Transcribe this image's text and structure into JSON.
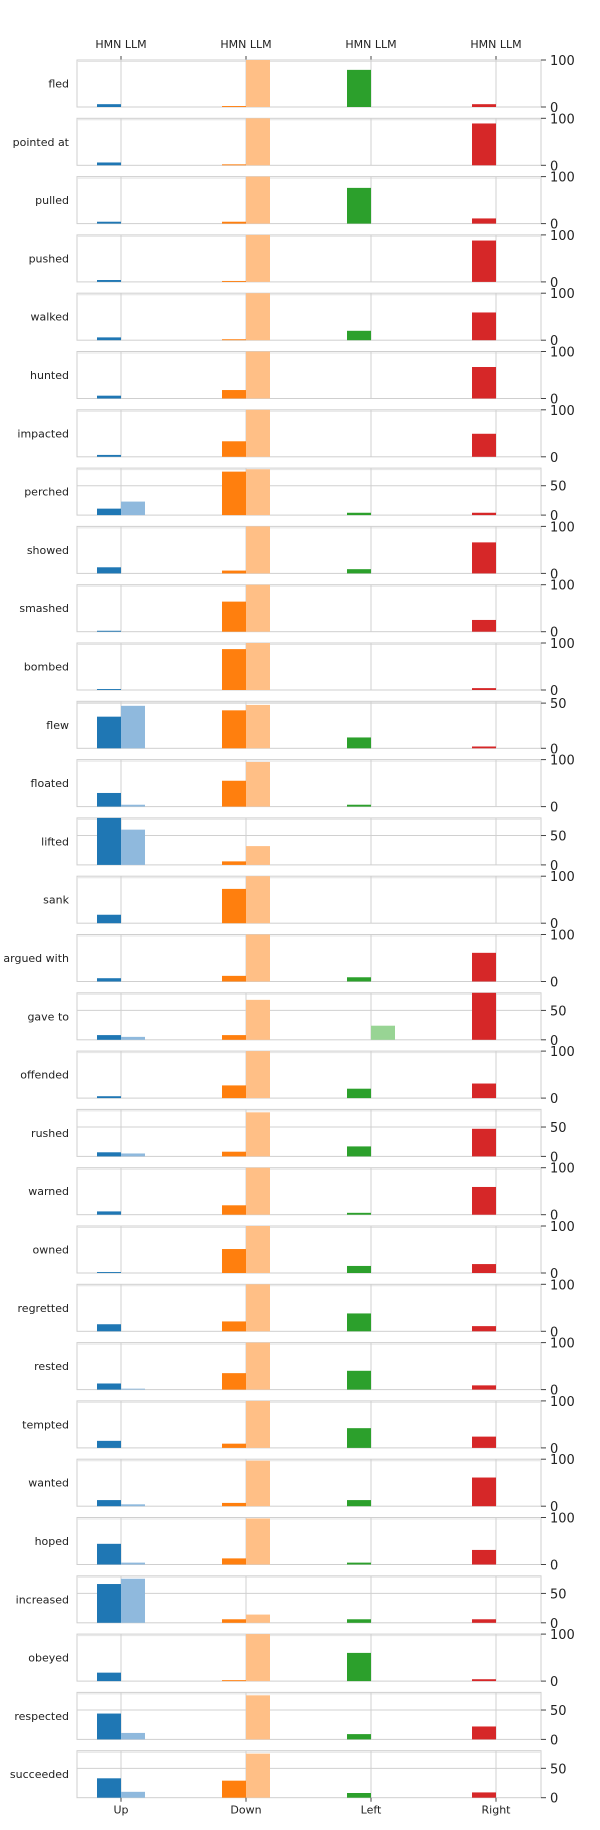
{
  "chart_data": {
    "type": "bar",
    "groups": [
      "Up",
      "Down",
      "Left",
      "Right"
    ],
    "sub_labels": [
      "HMN",
      "LLM"
    ],
    "group_colors": {
      "Up": {
        "HMN": "#1f77b4",
        "LLM": "#8fb9dd"
      },
      "Down": {
        "HMN": "#ff7f0e",
        "LLM": "#ffbf86"
      },
      "Left": {
        "HMN": "#2ca02c",
        "LLM": "#98d494"
      },
      "Right": {
        "HMN": "#d62728",
        "LLM": "#ea9392"
      }
    },
    "verbs": [
      {
        "verb": "fled",
        "ylim": [
          0,
          100
        ],
        "yticks": [
          0,
          100
        ],
        "values": {
          "Up": [
            6,
            0
          ],
          "Down": [
            2,
            100
          ],
          "Left": [
            79,
            0
          ],
          "Right": [
            6,
            0
          ]
        }
      },
      {
        "verb": "pointed at",
        "ylim": [
          0,
          100
        ],
        "yticks": [
          0,
          100
        ],
        "values": {
          "Up": [
            6,
            0
          ],
          "Down": [
            2,
            100
          ],
          "Left": [
            0,
            0
          ],
          "Right": [
            89,
            0
          ]
        }
      },
      {
        "verb": "pulled",
        "ylim": [
          0,
          100
        ],
        "yticks": [
          0,
          100
        ],
        "values": {
          "Up": [
            4,
            0
          ],
          "Down": [
            4,
            100
          ],
          "Left": [
            76,
            0
          ],
          "Right": [
            11,
            0
          ]
        }
      },
      {
        "verb": "pushed",
        "ylim": [
          0,
          100
        ],
        "yticks": [
          0,
          100
        ],
        "values": {
          "Up": [
            4,
            0
          ],
          "Down": [
            2,
            100
          ],
          "Left": [
            0,
            0
          ],
          "Right": [
            88,
            0
          ]
        }
      },
      {
        "verb": "walked",
        "ylim": [
          0,
          100
        ],
        "yticks": [
          0,
          100
        ],
        "values": {
          "Up": [
            6,
            0
          ],
          "Down": [
            2,
            100
          ],
          "Left": [
            20,
            0
          ],
          "Right": [
            59,
            0
          ]
        }
      },
      {
        "verb": "hunted",
        "ylim": [
          0,
          100
        ],
        "yticks": [
          0,
          100
        ],
        "values": {
          "Up": [
            6,
            0
          ],
          "Down": [
            18,
            100
          ],
          "Left": [
            0,
            0
          ],
          "Right": [
            67,
            0
          ]
        }
      },
      {
        "verb": "impacted",
        "ylim": [
          0,
          100
        ],
        "yticks": [
          0,
          100
        ],
        "values": {
          "Up": [
            4,
            0
          ],
          "Down": [
            33,
            100
          ],
          "Left": [
            0,
            0
          ],
          "Right": [
            49,
            0
          ]
        }
      },
      {
        "verb": "perched",
        "ylim": [
          0,
          80
        ],
        "yticks": [
          0,
          50
        ],
        "values": {
          "Up": [
            11,
            23
          ],
          "Down": [
            74,
            78
          ],
          "Left": [
            4,
            0
          ],
          "Right": [
            4,
            0
          ]
        }
      },
      {
        "verb": "showed",
        "ylim": [
          0,
          100
        ],
        "yticks": [
          0,
          100
        ],
        "values": {
          "Up": [
            13,
            0
          ],
          "Down": [
            6,
            100
          ],
          "Left": [
            9,
            0
          ],
          "Right": [
            66,
            0
          ]
        }
      },
      {
        "verb": "smashed",
        "ylim": [
          0,
          100
        ],
        "yticks": [
          0,
          100
        ],
        "values": {
          "Up": [
            2,
            0
          ],
          "Down": [
            64,
            100
          ],
          "Left": [
            0,
            0
          ],
          "Right": [
            25,
            0
          ]
        }
      },
      {
        "verb": "bombed",
        "ylim": [
          0,
          100
        ],
        "yticks": [
          0,
          100
        ],
        "values": {
          "Up": [
            2,
            0
          ],
          "Down": [
            87,
            100
          ],
          "Left": [
            0,
            0
          ],
          "Right": [
            4,
            0
          ]
        }
      },
      {
        "verb": "flew",
        "ylim": [
          0,
          52
        ],
        "yticks": [
          0,
          50
        ],
        "values": {
          "Up": [
            35,
            47
          ],
          "Down": [
            42,
            48
          ],
          "Left": [
            12,
            0
          ],
          "Right": [
            2,
            0
          ]
        }
      },
      {
        "verb": "floated",
        "ylim": [
          0,
          100
        ],
        "yticks": [
          0,
          100
        ],
        "values": {
          "Up": [
            29,
            4
          ],
          "Down": [
            55,
            95
          ],
          "Left": [
            4,
            0
          ],
          "Right": [
            0,
            0
          ]
        }
      },
      {
        "verb": "lifted",
        "ylim": [
          0,
          80
        ],
        "yticks": [
          0,
          50
        ],
        "values": {
          "Up": [
            80,
            60
          ],
          "Down": [
            6,
            32
          ],
          "Left": [
            0,
            0
          ],
          "Right": [
            0,
            0
          ]
        }
      },
      {
        "verb": "sank",
        "ylim": [
          0,
          100
        ],
        "yticks": [
          0,
          100
        ],
        "values": {
          "Up": [
            18,
            0
          ],
          "Down": [
            73,
            100
          ],
          "Left": [
            0,
            0
          ],
          "Right": [
            0,
            0
          ]
        }
      },
      {
        "verb": "argued with",
        "ylim": [
          0,
          100
        ],
        "yticks": [
          0,
          100
        ],
        "values": {
          "Up": [
            7,
            0
          ],
          "Down": [
            12,
            100
          ],
          "Left": [
            9,
            0
          ],
          "Right": [
            61,
            0
          ]
        }
      },
      {
        "verb": "gave to",
        "ylim": [
          0,
          80
        ],
        "yticks": [
          0,
          50
        ],
        "values": {
          "Up": [
            8,
            5
          ],
          "Down": [
            8,
            68
          ],
          "Left": [
            0,
            24
          ],
          "Right": [
            80,
            0
          ]
        }
      },
      {
        "verb": "offended",
        "ylim": [
          0,
          100
        ],
        "yticks": [
          0,
          100
        ],
        "values": {
          "Up": [
            4,
            0
          ],
          "Down": [
            27,
            100
          ],
          "Left": [
            20,
            0
          ],
          "Right": [
            31,
            0
          ]
        }
      },
      {
        "verb": "rushed",
        "ylim": [
          0,
          80
        ],
        "yticks": [
          0,
          50
        ],
        "values": {
          "Up": [
            7,
            5
          ],
          "Down": [
            8,
            75
          ],
          "Left": [
            17,
            0
          ],
          "Right": [
            47,
            0
          ]
        }
      },
      {
        "verb": "warned",
        "ylim": [
          0,
          100
        ],
        "yticks": [
          0,
          100
        ],
        "values": {
          "Up": [
            7,
            0
          ],
          "Down": [
            20,
            100
          ],
          "Left": [
            4,
            0
          ],
          "Right": [
            59,
            0
          ]
        }
      },
      {
        "verb": "owned",
        "ylim": [
          0,
          100
        ],
        "yticks": [
          0,
          100
        ],
        "values": {
          "Up": [
            2,
            0
          ],
          "Down": [
            51,
            100
          ],
          "Left": [
            15,
            0
          ],
          "Right": [
            19,
            0
          ]
        }
      },
      {
        "verb": "regretted",
        "ylim": [
          0,
          100
        ],
        "yticks": [
          0,
          100
        ],
        "values": {
          "Up": [
            15,
            0
          ],
          "Down": [
            21,
            100
          ],
          "Left": [
            38,
            0
          ],
          "Right": [
            11,
            0
          ]
        }
      },
      {
        "verb": "rested",
        "ylim": [
          0,
          100
        ],
        "yticks": [
          0,
          100
        ],
        "values": {
          "Up": [
            13,
            2
          ],
          "Down": [
            35,
            100
          ],
          "Left": [
            40,
            0
          ],
          "Right": [
            9,
            0
          ]
        }
      },
      {
        "verb": "tempted",
        "ylim": [
          0,
          100
        ],
        "yticks": [
          0,
          100
        ],
        "values": {
          "Up": [
            15,
            0
          ],
          "Down": [
            9,
            100
          ],
          "Left": [
            42,
            0
          ],
          "Right": [
            24,
            0
          ]
        }
      },
      {
        "verb": "wanted",
        "ylim": [
          0,
          100
        ],
        "yticks": [
          0,
          100
        ],
        "values": {
          "Up": [
            13,
            4
          ],
          "Down": [
            7,
            97
          ],
          "Left": [
            13,
            0
          ],
          "Right": [
            61,
            0
          ]
        }
      },
      {
        "verb": "hoped",
        "ylim": [
          0,
          100
        ],
        "yticks": [
          0,
          100
        ],
        "values": {
          "Up": [
            44,
            4
          ],
          "Down": [
            13,
            98
          ],
          "Left": [
            4,
            0
          ],
          "Right": [
            31,
            0
          ]
        }
      },
      {
        "verb": "increased",
        "ylim": [
          0,
          80
        ],
        "yticks": [
          0,
          50
        ],
        "values": {
          "Up": [
            66,
            75
          ],
          "Down": [
            6,
            14
          ],
          "Left": [
            6,
            0
          ],
          "Right": [
            6,
            0
          ]
        }
      },
      {
        "verb": "obeyed",
        "ylim": [
          0,
          100
        ],
        "yticks": [
          0,
          100
        ],
        "values": {
          "Up": [
            18,
            0
          ],
          "Down": [
            2,
            100
          ],
          "Left": [
            60,
            0
          ],
          "Right": [
            4,
            0
          ]
        }
      },
      {
        "verb": "respected",
        "ylim": [
          0,
          80
        ],
        "yticks": [
          0,
          50
        ],
        "values": {
          "Up": [
            44,
            11
          ],
          "Down": [
            0,
            75
          ],
          "Left": [
            9,
            0
          ],
          "Right": [
            22,
            0
          ]
        }
      },
      {
        "verb": "succeeded",
        "ylim": [
          0,
          80
        ],
        "yticks": [
          0,
          50
        ],
        "values": {
          "Up": [
            33,
            10
          ],
          "Down": [
            29,
            75
          ],
          "Left": [
            8,
            0
          ],
          "Right": [
            9,
            0
          ]
        }
      }
    ],
    "grid": true,
    "xlabel": "",
    "ylabel": ""
  }
}
